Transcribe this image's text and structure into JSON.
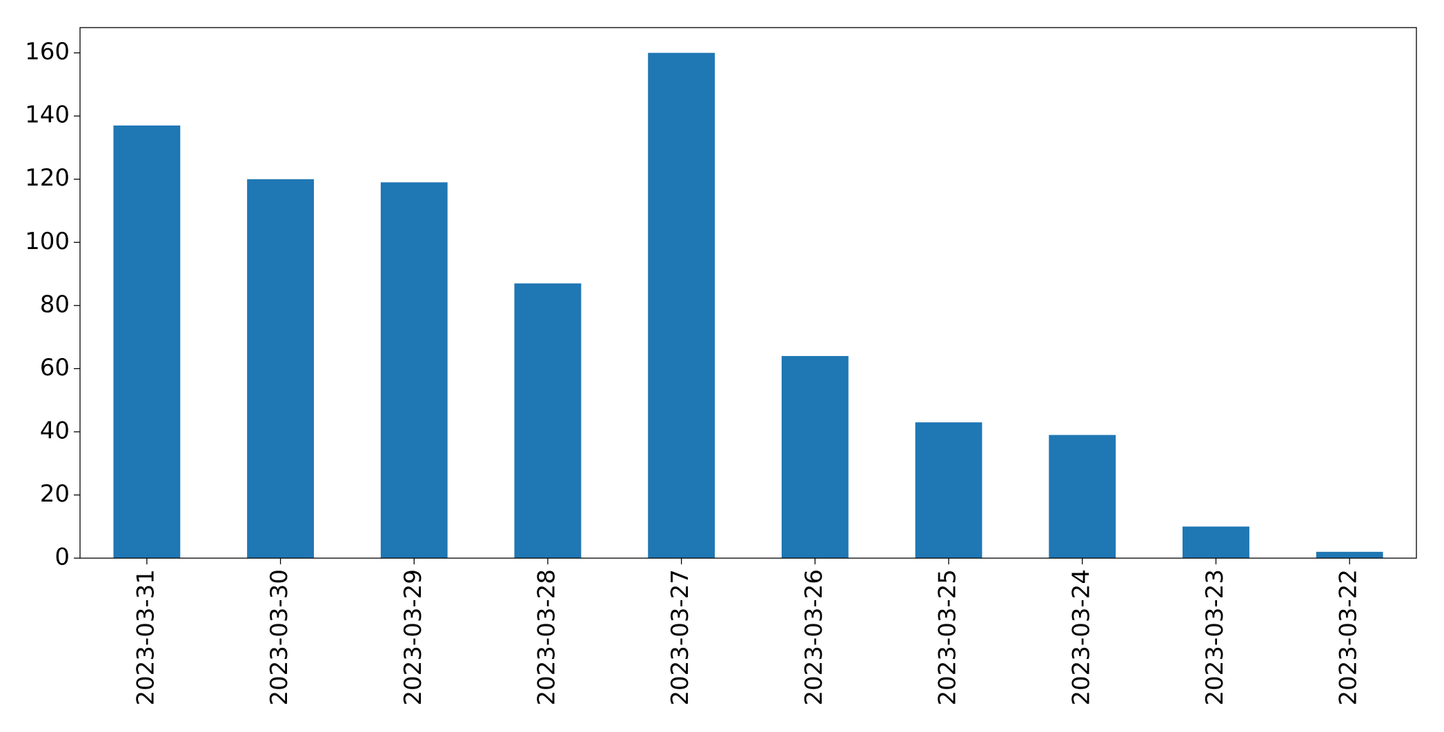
{
  "chart_data": {
    "type": "bar",
    "categories": [
      "2023-03-31",
      "2023-03-30",
      "2023-03-29",
      "2023-03-28",
      "2023-03-27",
      "2023-03-26",
      "2023-03-25",
      "2023-03-24",
      "2023-03-23",
      "2023-03-22"
    ],
    "values": [
      137,
      120,
      119,
      87,
      160,
      64,
      43,
      39,
      10,
      2
    ],
    "color": "#1f77b4",
    "ylim": [
      0,
      168
    ],
    "yticks": [
      0,
      20,
      40,
      60,
      80,
      100,
      120,
      140,
      160
    ],
    "grid": false
  }
}
